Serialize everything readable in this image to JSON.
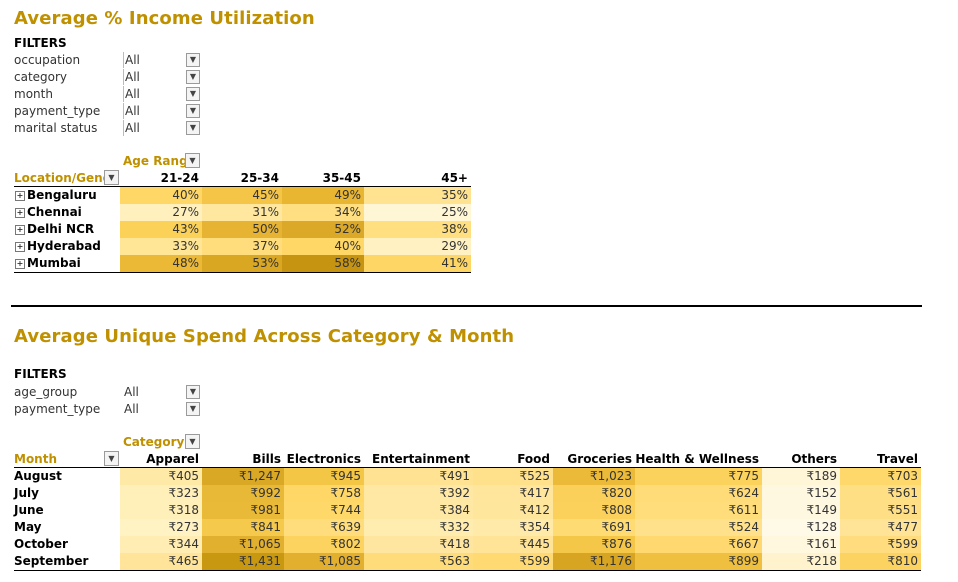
{
  "section1": {
    "title": "Average % Income Utilization",
    "filters_label": "FILTERS",
    "filters": [
      {
        "name": "occupation",
        "value": "All"
      },
      {
        "name": "category",
        "value": "All"
      },
      {
        "name": "month",
        "value": "All"
      },
      {
        "name": "payment_type",
        "value": "All"
      },
      {
        "name": "marital status",
        "value": "All"
      }
    ],
    "col_field": "Age Rang",
    "row_field": "Location/Genc",
    "columns": [
      "21-24",
      "25-34",
      "35-45",
      "45+"
    ],
    "rows": [
      {
        "label": "Bengaluru",
        "values": [
          "40%",
          "45%",
          "49%",
          "35%"
        ]
      },
      {
        "label": "Chennai",
        "values": [
          "27%",
          "31%",
          "34%",
          "25%"
        ]
      },
      {
        "label": "Delhi NCR",
        "values": [
          "43%",
          "50%",
          "52%",
          "38%"
        ]
      },
      {
        "label": "Hyderabad",
        "values": [
          "33%",
          "37%",
          "40%",
          "29%"
        ]
      },
      {
        "label": "Mumbai",
        "values": [
          "48%",
          "53%",
          "58%",
          "41%"
        ]
      }
    ],
    "colors": [
      [
        "#fed767",
        "#f4c546",
        "#e9b632",
        "#ffe391"
      ],
      [
        "#fff0bd",
        "#ffe79f",
        "#ffdf82",
        "#fff6d6"
      ],
      [
        "#fbd158",
        "#e6b332",
        "#dba927",
        "#ffdf7f"
      ],
      [
        "#ffe596",
        "#ffdd7c",
        "#fed767",
        "#fff1c1"
      ],
      [
        "#ebb935",
        "#d9a722",
        "#c69410",
        "#fed665"
      ]
    ]
  },
  "section2": {
    "title": "Average Unique Spend Across Category & Month",
    "filters_label": "FILTERS",
    "filters": [
      {
        "name": "age_group",
        "value": "All"
      },
      {
        "name": "payment_type",
        "value": "All"
      }
    ],
    "col_field": "Category",
    "row_field": "Month",
    "columns": [
      "Apparel",
      "Bills",
      "Electronics",
      "Entertainment",
      "Food",
      "Groceries",
      "Health & Wellness",
      "Others",
      "Travel"
    ],
    "rows": [
      {
        "label": "August",
        "values": [
          "₹405",
          "₹1,247",
          "₹945",
          "₹491",
          "₹525",
          "₹1,023",
          "₹775",
          "₹189",
          "₹703"
        ]
      },
      {
        "label": "July",
        "values": [
          "₹323",
          "₹992",
          "₹758",
          "₹392",
          "₹417",
          "₹820",
          "₹624",
          "₹152",
          "₹561"
        ]
      },
      {
        "label": "June",
        "values": [
          "₹318",
          "₹981",
          "₹744",
          "₹384",
          "₹412",
          "₹808",
          "₹611",
          "₹149",
          "₹551"
        ]
      },
      {
        "label": "May",
        "values": [
          "₹273",
          "₹841",
          "₹639",
          "₹332",
          "₹354",
          "₹691",
          "₹524",
          "₹128",
          "₹477"
        ]
      },
      {
        "label": "October",
        "values": [
          "₹344",
          "₹1,065",
          "₹802",
          "₹418",
          "₹445",
          "₹876",
          "₹667",
          "₹161",
          "₹599"
        ]
      },
      {
        "label": "September",
        "values": [
          "₹465",
          "₹1,431",
          "₹1,085",
          "₹563",
          "₹599",
          "₹1,176",
          "₹899",
          "₹218",
          "₹810"
        ]
      }
    ],
    "colors": [
      [
        "#ffe9a6",
        "#d9a825",
        "#f3c646",
        "#ffe393",
        "#ffe18c",
        "#ebba38",
        "#fbd25c",
        "#fff6d8",
        "#fed86b"
      ],
      [
        "#ffefb8",
        "#e8b837",
        "#fed766",
        "#ffe8a3",
        "#ffe69c",
        "#fad05a",
        "#ffdc78",
        "#fff8e0",
        "#ffdf84"
      ],
      [
        "#ffefb9",
        "#e9b938",
        "#fed868",
        "#ffe8a4",
        "#ffe69d",
        "#fbd15b",
        "#ffdd7a",
        "#fff8e1",
        "#ffdf85"
      ],
      [
        "#fff2c3",
        "#f5c94b",
        "#ffdd7c",
        "#ffecaf",
        "#ffeaa9",
        "#ffdb74",
        "#ffe18b",
        "#fffae8",
        "#ffe497"
      ],
      [
        "#ffedb4",
        "#e2b02f",
        "#fcd35f",
        "#ffe6a0",
        "#ffe497",
        "#f4c749",
        "#ffd970",
        "#fff7de",
        "#ffdc7d"
      ],
      [
        "#ffe499",
        "#c99811",
        "#e2b02e",
        "#ffdc7a",
        "#ffda72",
        "#d7a521",
        "#efc03f",
        "#fff3ce",
        "#fcd360"
      ]
    ]
  }
}
